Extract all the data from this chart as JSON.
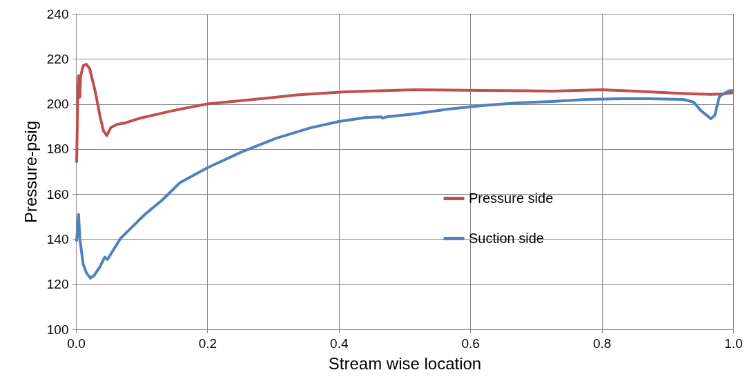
{
  "chart_data": {
    "type": "line",
    "xlabel": "Stream wise location",
    "ylabel": "Pressure-psig",
    "xlim": [
      0,
      1
    ],
    "xticks": [
      {
        "value": 0,
        "label": "0.0"
      },
      0.2,
      0.4,
      0.6,
      0.8,
      {
        "value": 1,
        "label": "1.0"
      }
    ],
    "ylim": [
      100,
      240
    ],
    "yticks": [
      100,
      120,
      140,
      160,
      180,
      200,
      220,
      240
    ],
    "grid": true,
    "legend": "center",
    "marker": "none",
    "line_style": "solid",
    "series": [
      {
        "name": "Pressure side",
        "color": "#c0504d",
        "x": [
          0.001,
          0.003,
          0.004,
          0.006,
          0.007,
          0.011,
          0.016,
          0.021,
          0.029,
          0.037,
          0.042,
          0.047,
          0.053,
          0.063,
          0.074,
          0.095,
          0.147,
          0.2,
          0.252,
          0.305,
          0.336,
          0.41,
          0.515,
          0.62,
          0.725,
          0.8,
          0.85,
          0.914,
          0.966,
          0.987,
          1.0
        ],
        "values": [
          174,
          206,
          212.5,
          203,
          212,
          217,
          217.6,
          215.5,
          206,
          194,
          188,
          186,
          189.5,
          191,
          191.5,
          193.5,
          197,
          200,
          201.5,
          203,
          204,
          205.4,
          206.3,
          206,
          205.7,
          206.3,
          205.7,
          204.8,
          204.2,
          204.5,
          205
        ]
      },
      {
        "name": "Suction side",
        "color": "#4f81bd",
        "x": [
          0.001,
          0.004,
          0.006,
          0.011,
          0.016,
          0.022,
          0.028,
          0.037,
          0.042,
          0.044,
          0.048,
          0.055,
          0.068,
          0.084,
          0.105,
          0.131,
          0.158,
          0.2,
          0.252,
          0.305,
          0.357,
          0.4,
          0.441,
          0.464,
          0.467,
          0.473,
          0.515,
          0.567,
          0.62,
          0.672,
          0.725,
          0.777,
          0.83,
          0.872,
          0.924,
          0.94,
          0.951,
          0.961,
          0.966,
          0.972,
          0.979,
          0.985,
          0.993,
          0.998,
          1.0
        ],
        "values": [
          139,
          151,
          140,
          129,
          125,
          122.7,
          124,
          128,
          131,
          132,
          131,
          134.3,
          140.4,
          145,
          151,
          157.3,
          165,
          171.7,
          178.7,
          184.8,
          189.4,
          192.2,
          194,
          194.3,
          193.7,
          194.3,
          195.6,
          197.7,
          199.3,
          200.5,
          201.1,
          202,
          202.3,
          202.3,
          202,
          200.8,
          197,
          194.7,
          193.4,
          195,
          203.2,
          204.5,
          205.7,
          206,
          205.4
        ]
      }
    ]
  }
}
